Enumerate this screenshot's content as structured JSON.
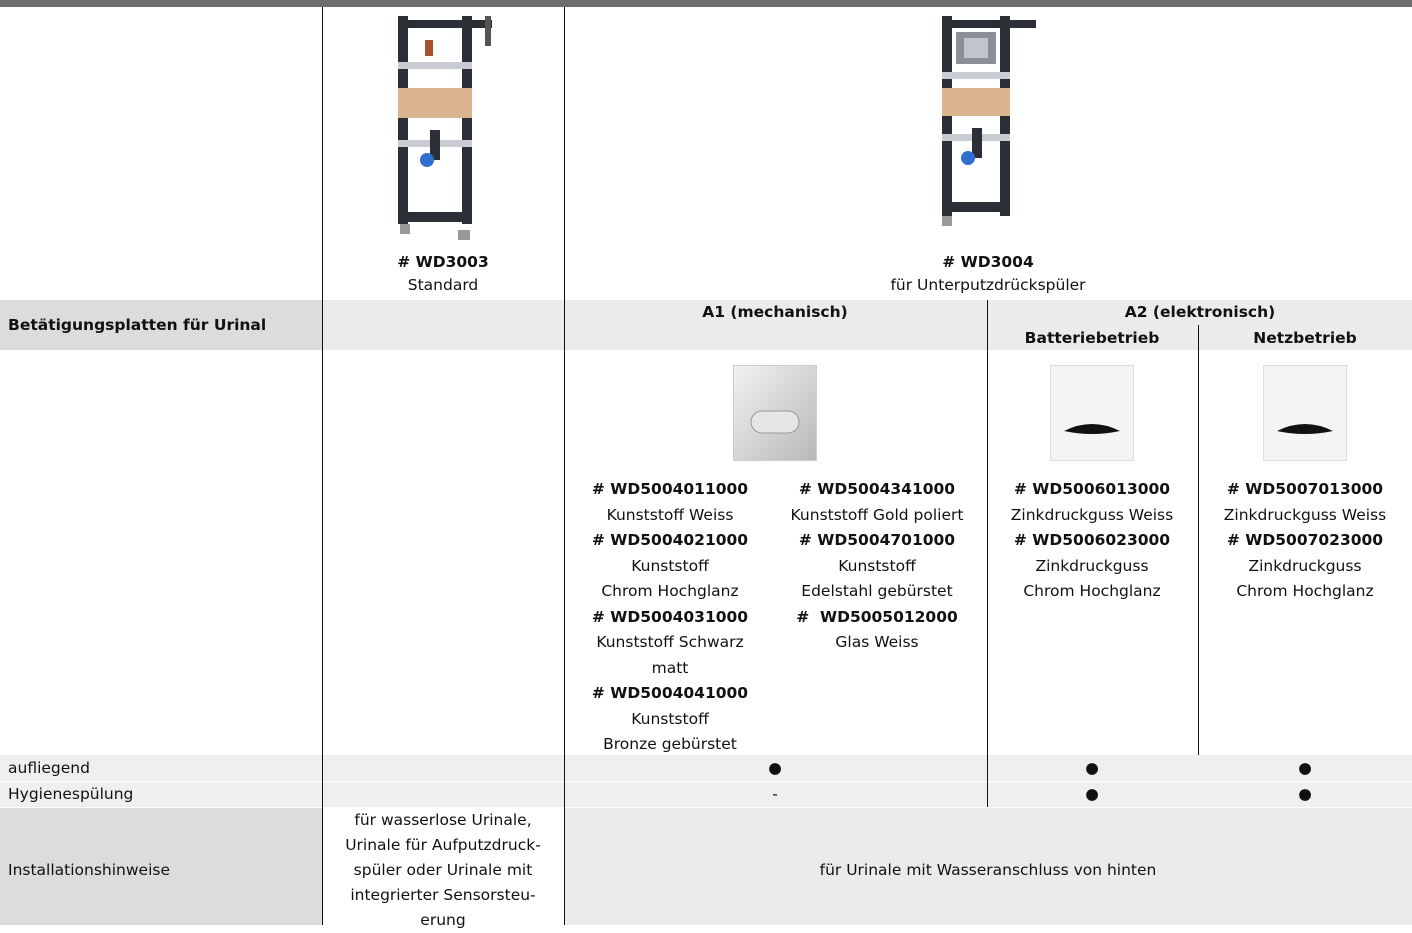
{
  "header": {
    "products": [
      {
        "code": "# WD3003",
        "label": "Standard"
      },
      {
        "code": "# WD3004",
        "label": "für Unterputzdrückspüler"
      }
    ]
  },
  "table": {
    "section": "Betätigungsplatten für Urinal",
    "groups": [
      "A1 (mechanisch)",
      "A2 (elektronisch)"
    ],
    "subgroups": [
      "Batteriebetrieb",
      "Netzbetrieb"
    ],
    "plates": [
      [
        {
          "code": "# WD5004011000",
          "lines": [
            "Kunststoff Weiss"
          ]
        },
        {
          "code": "# WD5004021000",
          "lines": [
            "Kunststoff",
            "Chrom Hochglanz"
          ]
        },
        {
          "code": "# WD5004031000",
          "lines": [
            "Kunststoff Schwarz",
            "matt"
          ]
        },
        {
          "code": "# WD5004041000",
          "lines": [
            "Kunststoff",
            "Bronze gebürstet"
          ]
        }
      ],
      [
        {
          "code": "# WD5004341000",
          "lines": [
            "Kunststoff Gold poliert"
          ]
        },
        {
          "code": "# WD5004701000",
          "lines": [
            "Kunststoff",
            "Edelstahl gebürstet"
          ]
        },
        {
          "code": "#  WD5005012000",
          "lines": [
            "Glas Weiss"
          ]
        }
      ],
      [
        {
          "code": "# WD5006013000",
          "lines": [
            "Zinkdruckguss Weiss"
          ]
        },
        {
          "code": "# WD5006023000",
          "lines": [
            "Zinkdruckguss",
            "Chrom Hochglanz"
          ]
        }
      ],
      [
        {
          "code": "# WD5007013000",
          "lines": [
            "Zinkdruckguss Weiss"
          ]
        },
        {
          "code": "# WD5007023000",
          "lines": [
            "Zinkdruckguss",
            "Chrom Hochglanz"
          ]
        }
      ]
    ],
    "rows": [
      {
        "label": "aufliegend",
        "cells": [
          "●",
          "●",
          "●"
        ]
      },
      {
        "label": "Hygienespülung",
        "cells": [
          "-",
          "●",
          "●"
        ]
      }
    ],
    "install": {
      "label": "Installationshinweise",
      "standard": [
        "für wasserlose Urinale,",
        "Urinale für Aufputzdruck-",
        "spüler oder Urinale mit",
        "integrierter Sensorsteu-",
        "erung"
      ],
      "concealed": "für Urinale mit Wasseranschluss von hinten"
    }
  }
}
